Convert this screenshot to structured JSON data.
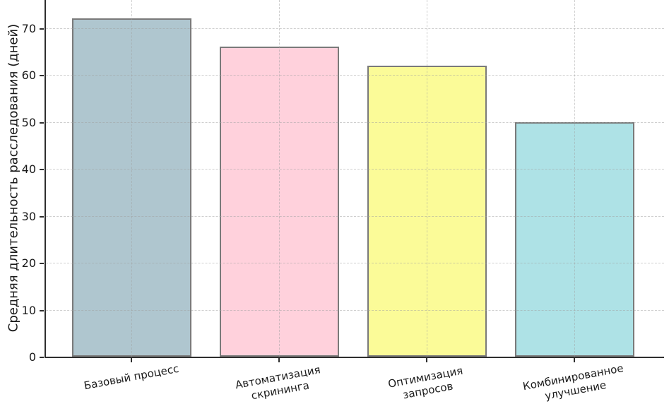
{
  "chart_data": {
    "type": "bar",
    "categories": [
      "Базовый процесс",
      "Автоматизация\nскрининга",
      "Оптимизация\nзапросов",
      "Комбинированное\nулучшение"
    ],
    "values": [
      72,
      66,
      62,
      50
    ],
    "bar_colors": [
      "#afc6cf",
      "#ffd1dc",
      "#fbfb98",
      "#aee2e6"
    ],
    "bar_edge_color": "#7a7a7a",
    "title": "",
    "xlabel": "",
    "ylabel": "Средняя длительность расследования (дней)",
    "yticks": [
      0,
      10,
      20,
      30,
      40,
      50,
      60,
      70
    ],
    "ylim": [
      0,
      76
    ],
    "grid": true,
    "grid_style": "dashed",
    "legend": "none",
    "x_tick_rotation_deg": 11,
    "note_top_cropped": true
  }
}
